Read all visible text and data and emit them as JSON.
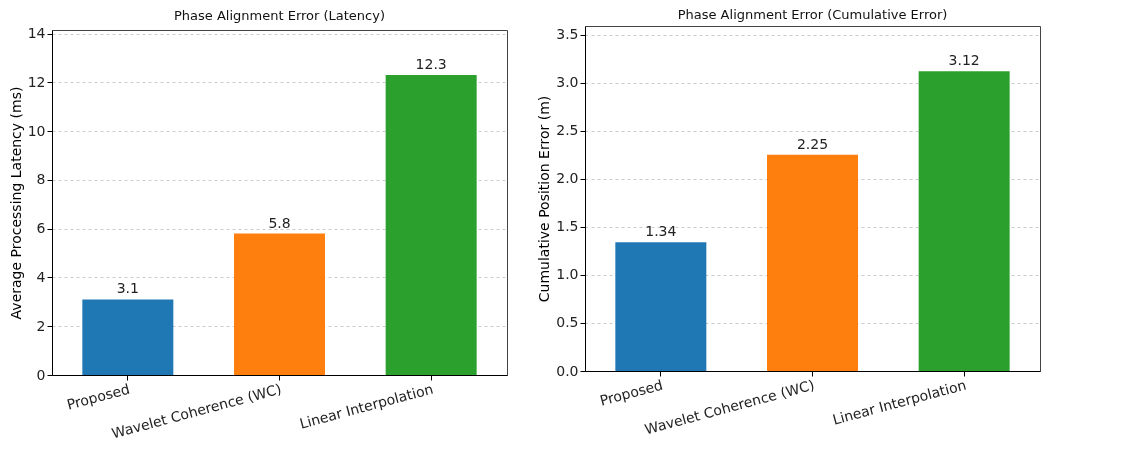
{
  "chart_data": [
    {
      "type": "bar",
      "title": "Phase Alignment Error (Latency)",
      "ylabel": "Average Processing Latency (ms)",
      "categories": [
        "Proposed",
        "Wavelet Coherence (WC)",
        "Linear Interpolation"
      ],
      "values": [
        3.1,
        5.8,
        12.3
      ],
      "colors": [
        "#1f77b4",
        "#ff7f0e",
        "#2ca02c"
      ],
      "ylim": [
        0,
        14.15
      ],
      "yticks": [
        0,
        2,
        4,
        6,
        8,
        10,
        12,
        14
      ],
      "grid": "y",
      "data_labels": true
    },
    {
      "type": "bar",
      "title": "Phase Alignment Error (Cumulative Error)",
      "ylabel": "Cumulative Position Error (m)",
      "categories": [
        "Proposed",
        "Wavelet Coherence (WC)",
        "Linear Interpolation"
      ],
      "values": [
        1.34,
        2.25,
        3.12
      ],
      "colors": [
        "#1f77b4",
        "#ff7f0e",
        "#2ca02c"
      ],
      "ylim": [
        0,
        3.59
      ],
      "yticks": [
        {
          "value": 0,
          "label": "0.0"
        },
        0.5,
        {
          "value": 1,
          "label": "1.0"
        },
        1.5,
        {
          "value": 2,
          "label": "2.0"
        },
        2.5,
        {
          "value": 3,
          "label": "3.0"
        },
        3.5
      ],
      "grid": "y",
      "data_labels": true
    }
  ]
}
